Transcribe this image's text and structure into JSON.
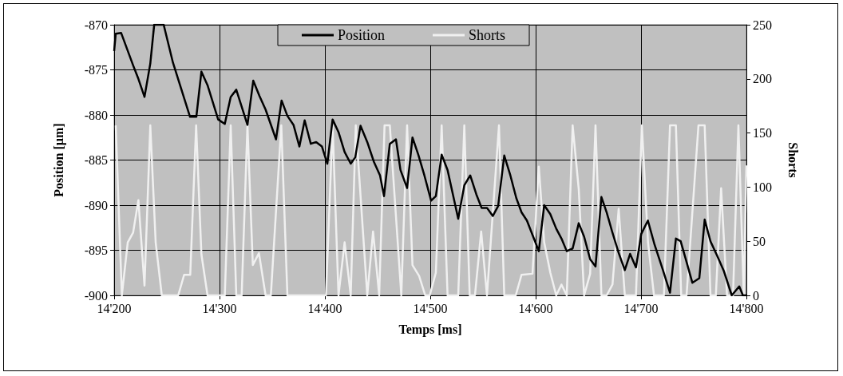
{
  "chart_data": {
    "type": "line",
    "xlabel": "Temps [ms]",
    "ylabel": "Position [µm]",
    "y2label": "Shorts",
    "xlim": [
      14200,
      14800
    ],
    "xticks": [
      {
        "value": 14200,
        "label": "14'200"
      },
      {
        "value": 14300,
        "label": "14'300"
      },
      {
        "value": 14400,
        "label": "14'400"
      },
      {
        "value": 14500,
        "label": "14'500"
      },
      {
        "value": 14600,
        "label": "14'600"
      },
      {
        "value": 14700,
        "label": "14'700"
      },
      {
        "value": 14800,
        "label": "14'800"
      }
    ],
    "ylim": [
      -900,
      -870
    ],
    "yticks": [
      -900,
      -895,
      -890,
      -885,
      -880,
      -875,
      -870
    ],
    "y2lim": [
      0,
      250
    ],
    "y2ticks": [
      0,
      50,
      100,
      150,
      200,
      250
    ],
    "grid": true,
    "legend": "top",
    "marker": "none",
    "line_style": "solid",
    "series": [
      {
        "name": "Position",
        "color": "#000000",
        "x": [
          14200,
          14201.5,
          14206.6,
          14218,
          14223,
          14228.8,
          14234.3,
          14238,
          14247,
          14255.8,
          14272,
          14278,
          14282.8,
          14288.6,
          14298.7,
          14305,
          14310.6,
          14315.9,
          14326.5,
          14332,
          14337.9,
          14343.7,
          14353.6,
          14358.9,
          14364.4,
          14370.2,
          14375.8,
          14380.8,
          14386.6,
          14391.7,
          14397.2,
          14402.3,
          14407.3,
          14412.9,
          14418.7,
          14424.5,
          14428.8,
          14433.8,
          14440.2,
          14446.5,
          14452.3,
          14456.1,
          14461.6,
          14467.4,
          14471.7,
          14478,
          14483.1,
          14488.6,
          14494.4,
          14500.8,
          14505.3,
          14510.8,
          14516.4,
          14526.5,
          14532.3,
          14537.9,
          14543.7,
          14548.7,
          14553.8,
          14559.3,
          14564.4,
          14570.2,
          14576,
          14581.6,
          14586.6,
          14591.7,
          14598.7,
          14603,
          14608.1,
          14613.9,
          14619.5,
          14624.5,
          14629.5,
          14635.1,
          14640.9,
          14646,
          14651.7,
          14656.8,
          14662.4,
          14667.4,
          14672.5,
          14678.8,
          14684.6,
          14689.6,
          14695.2,
          14700.2,
          14706.5,
          14712.9,
          14720.5,
          14727.5,
          14733.1,
          14737.6,
          14743.2,
          14748.7,
          14755.3,
          14760.4,
          14765.9,
          14772.2,
          14778.6,
          14786.1,
          14793.2,
          14796.7,
          14800
        ],
        "values": [
          -872.9,
          -871,
          -870.9,
          -874.5,
          -876,
          -878,
          -874.3,
          -870,
          -870,
          -874.2,
          -880.2,
          -880.2,
          -875.2,
          -876.7,
          -880.5,
          -881,
          -878,
          -877.2,
          -881.1,
          -876.2,
          -877.9,
          -879.4,
          -882.7,
          -878.4,
          -880.1,
          -881.1,
          -883.5,
          -880.6,
          -883.2,
          -883,
          -883.5,
          -885.4,
          -880.5,
          -881.9,
          -884.1,
          -885.4,
          -884.7,
          -881.2,
          -883,
          -885.2,
          -886.7,
          -889,
          -883.2,
          -882.7,
          -886.1,
          -888.1,
          -882.5,
          -884.4,
          -886.7,
          -889.5,
          -889,
          -884.4,
          -886.1,
          -891.5,
          -887.8,
          -886.7,
          -888.8,
          -890.3,
          -890.3,
          -891.2,
          -890.1,
          -884.5,
          -886.7,
          -889.2,
          -890.8,
          -891.7,
          -893.8,
          -895.1,
          -890,
          -891,
          -892.6,
          -893.7,
          -895.1,
          -894.8,
          -892,
          -893.5,
          -896,
          -896.8,
          -889.1,
          -890.8,
          -892.9,
          -895.3,
          -897.2,
          -895.4,
          -896.9,
          -893.2,
          -891.7,
          -894.4,
          -897.1,
          -899.7,
          -893.7,
          -894,
          -896.3,
          -898.6,
          -898.1,
          -891.6,
          -894,
          -895.6,
          -897.3,
          -900,
          -899,
          -900,
          -900
        ]
      },
      {
        "name": "Shorts",
        "color": "#f0f0f0",
        "axis": "y2",
        "x": [
          14201.5,
          14207.3,
          14212.9,
          14218,
          14223,
          14228.8,
          14234.3,
          14239.4,
          14245.2,
          14260.8,
          14266.4,
          14272.2,
          14277.8,
          14282.8,
          14288.6,
          14305,
          14310.6,
          14315.9,
          14321,
          14326.5,
          14331.6,
          14337.4,
          14343.7,
          14348.7,
          14358.6,
          14364.4,
          14401,
          14407.3,
          14412.9,
          14418.7,
          14424.5,
          14429.3,
          14440.2,
          14445.7,
          14451.5,
          14456.6,
          14461.6,
          14472.5,
          14478,
          14483.1,
          14489.4,
          14495.2,
          14499.5,
          14505.3,
          14510.8,
          14516.4,
          14526.5,
          14532.3,
          14537.4,
          14542.4,
          14548.3,
          14553.8,
          14565.2,
          14570.2,
          14581.1,
          14586.6,
          14597,
          14603,
          14608.1,
          14613.9,
          14619.5,
          14624.5,
          14629.5,
          14635.1,
          14640.9,
          14646,
          14651.7,
          14656.8,
          14662.4,
          14667.4,
          14672.9,
          14678.8,
          14684.6,
          14695.2,
          14700.8,
          14706.6,
          14712.3,
          14721.7,
          14727.5,
          14733.1,
          14738.1,
          14743.2,
          14754.5,
          14760.4,
          14765.9,
          14771,
          14776,
          14781.6,
          14787.3,
          14792.4,
          14797.5,
          14800
        ],
        "values": [
          157,
          0,
          49,
          58,
          88,
          9,
          157,
          49,
          0,
          0,
          19,
          19,
          157,
          38,
          0,
          0,
          157,
          0,
          0,
          157,
          28,
          39,
          0,
          0,
          157,
          0,
          0,
          157,
          0,
          49,
          0,
          157,
          0,
          59,
          0,
          157,
          157,
          0,
          157,
          28,
          18,
          0,
          0,
          21,
          157,
          0,
          0,
          157,
          0,
          0,
          59,
          0,
          157,
          0,
          0,
          19,
          20,
          119,
          49,
          21,
          0,
          10,
          0,
          157,
          98,
          0,
          20,
          157,
          0,
          0,
          10,
          80,
          0,
          0,
          157,
          49,
          0,
          0,
          157,
          157,
          0,
          0,
          157,
          157,
          0,
          0,
          99,
          0,
          0,
          157,
          0,
          120
        ]
      }
    ]
  }
}
